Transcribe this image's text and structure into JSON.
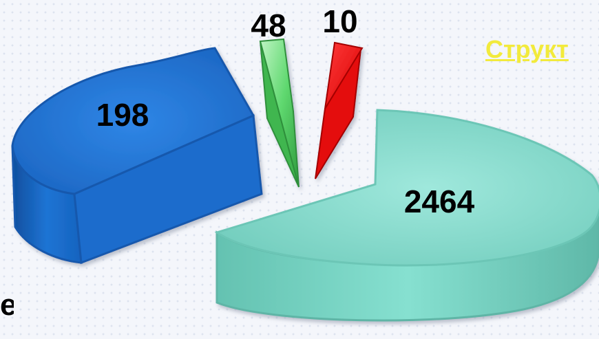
{
  "title": "Структ",
  "partial_text": "е",
  "chart_data": {
    "type": "pie",
    "title": "Структ",
    "exploded": true,
    "three_d": true,
    "slices": [
      {
        "value": 2464,
        "label": "2464",
        "color": "#7fd9c9"
      },
      {
        "value": 198,
        "label": "198",
        "color": "#1e6fd0"
      },
      {
        "value": 48,
        "label": "48",
        "color": "#5fd86f"
      },
      {
        "value": 10,
        "label": "10",
        "color": "#f01515"
      }
    ]
  }
}
